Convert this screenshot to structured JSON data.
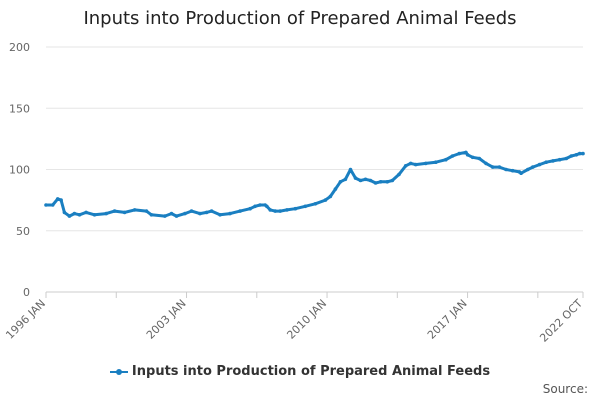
{
  "chart_data": {
    "type": "line",
    "title": "Inputs into Production of Prepared Animal Feeds",
    "xlabel": "",
    "ylabel": "",
    "ylim": [
      0,
      200
    ],
    "yticks": [
      0,
      50,
      100,
      150,
      200
    ],
    "xlim": [
      "1996 JAN",
      "2022 OCT"
    ],
    "xtick_labels": [
      "1996 JAN",
      "2003 JAN",
      "2010 JAN",
      "2017 JAN",
      "2022 OCT"
    ],
    "grid": true,
    "legend_position": "bottom",
    "color": "#1a7fc1",
    "series": [
      {
        "name": "Inputs into Production of Prepared Animal Feeds",
        "points": [
          [
            "1996 JAN",
            71
          ],
          [
            "1996 MAY",
            71
          ],
          [
            "1996 AUG",
            76
          ],
          [
            "1996 OCT",
            75
          ],
          [
            "1996 DEC",
            65
          ],
          [
            "1997 MAR",
            62
          ],
          [
            "1997 JUN",
            64
          ],
          [
            "1997 SEP",
            63
          ],
          [
            "1998 JAN",
            65
          ],
          [
            "1998 JUN",
            63
          ],
          [
            "1999 JAN",
            64
          ],
          [
            "1999 JUN",
            66
          ],
          [
            "1999 DEC",
            65
          ],
          [
            "2000 JUN",
            67
          ],
          [
            "2001 JAN",
            66
          ],
          [
            "2001 APR",
            63
          ],
          [
            "2001 DEC",
            62
          ],
          [
            "2002 APR",
            64
          ],
          [
            "2002 JUL",
            62
          ],
          [
            "2002 DEC",
            64
          ],
          [
            "2003 APR",
            66
          ],
          [
            "2003 SEP",
            64
          ],
          [
            "2004 JAN",
            65
          ],
          [
            "2004 APR",
            66
          ],
          [
            "2004 SEP",
            63
          ],
          [
            "2005 MAR",
            64
          ],
          [
            "2005 SEP",
            66
          ],
          [
            "2006 MAR",
            68
          ],
          [
            "2006 JUN",
            70
          ],
          [
            "2006 SEP",
            71
          ],
          [
            "2006 DEC",
            71
          ],
          [
            "2007 JAN",
            70
          ],
          [
            "2007 MAR",
            67
          ],
          [
            "2007 JUN",
            66
          ],
          [
            "2007 SEP",
            66
          ],
          [
            "2008 JAN",
            67
          ],
          [
            "2008 JUN",
            68
          ],
          [
            "2008 DEC",
            70
          ],
          [
            "2009 JUN",
            72
          ],
          [
            "2009 DEC",
            75
          ],
          [
            "2010 MAR",
            78
          ],
          [
            "2010 JUN",
            84
          ],
          [
            "2010 SEP",
            90
          ],
          [
            "2010 DEC",
            92
          ],
          [
            "2011 MAR",
            100
          ],
          [
            "2011 JUN",
            93
          ],
          [
            "2011 SEP",
            91
          ],
          [
            "2011 DEC",
            92
          ],
          [
            "2012 MAR",
            91
          ],
          [
            "2012 JUN",
            89
          ],
          [
            "2012 SEP",
            90
          ],
          [
            "2013 JAN",
            90
          ],
          [
            "2013 APR",
            91
          ],
          [
            "2013 AUG",
            96
          ],
          [
            "2013 DEC",
            103
          ],
          [
            "2014 MAR",
            105
          ],
          [
            "2014 JUN",
            104
          ],
          [
            "2014 DEC",
            105
          ],
          [
            "2015 JUN",
            106
          ],
          [
            "2015 DEC",
            108
          ],
          [
            "2016 APR",
            111
          ],
          [
            "2016 AUG",
            113
          ],
          [
            "2016 DEC",
            114
          ],
          [
            "2017 JAN",
            112
          ],
          [
            "2017 APR",
            110
          ],
          [
            "2017 AUG",
            109
          ],
          [
            "2017 DEC",
            105
          ],
          [
            "2018 APR",
            102
          ],
          [
            "2018 AUG",
            102
          ],
          [
            "2018 DEC",
            100
          ],
          [
            "2019 APR",
            99
          ],
          [
            "2019 AUG",
            98
          ],
          [
            "2019 SEP",
            97
          ],
          [
            "2020 JAN",
            100
          ],
          [
            "2020 APR",
            102
          ],
          [
            "2020 AUG",
            104
          ],
          [
            "2020 DEC",
            106
          ],
          [
            "2021 APR",
            107
          ],
          [
            "2021 AUG",
            108
          ],
          [
            "2021 DEC",
            109
          ],
          [
            "2022 MAR",
            111
          ],
          [
            "2022 JUN",
            112
          ],
          [
            "2022 AUG",
            113
          ],
          [
            "2022 OCT",
            113
          ]
        ]
      }
    ]
  },
  "footer": {
    "source_label": "Source:"
  }
}
